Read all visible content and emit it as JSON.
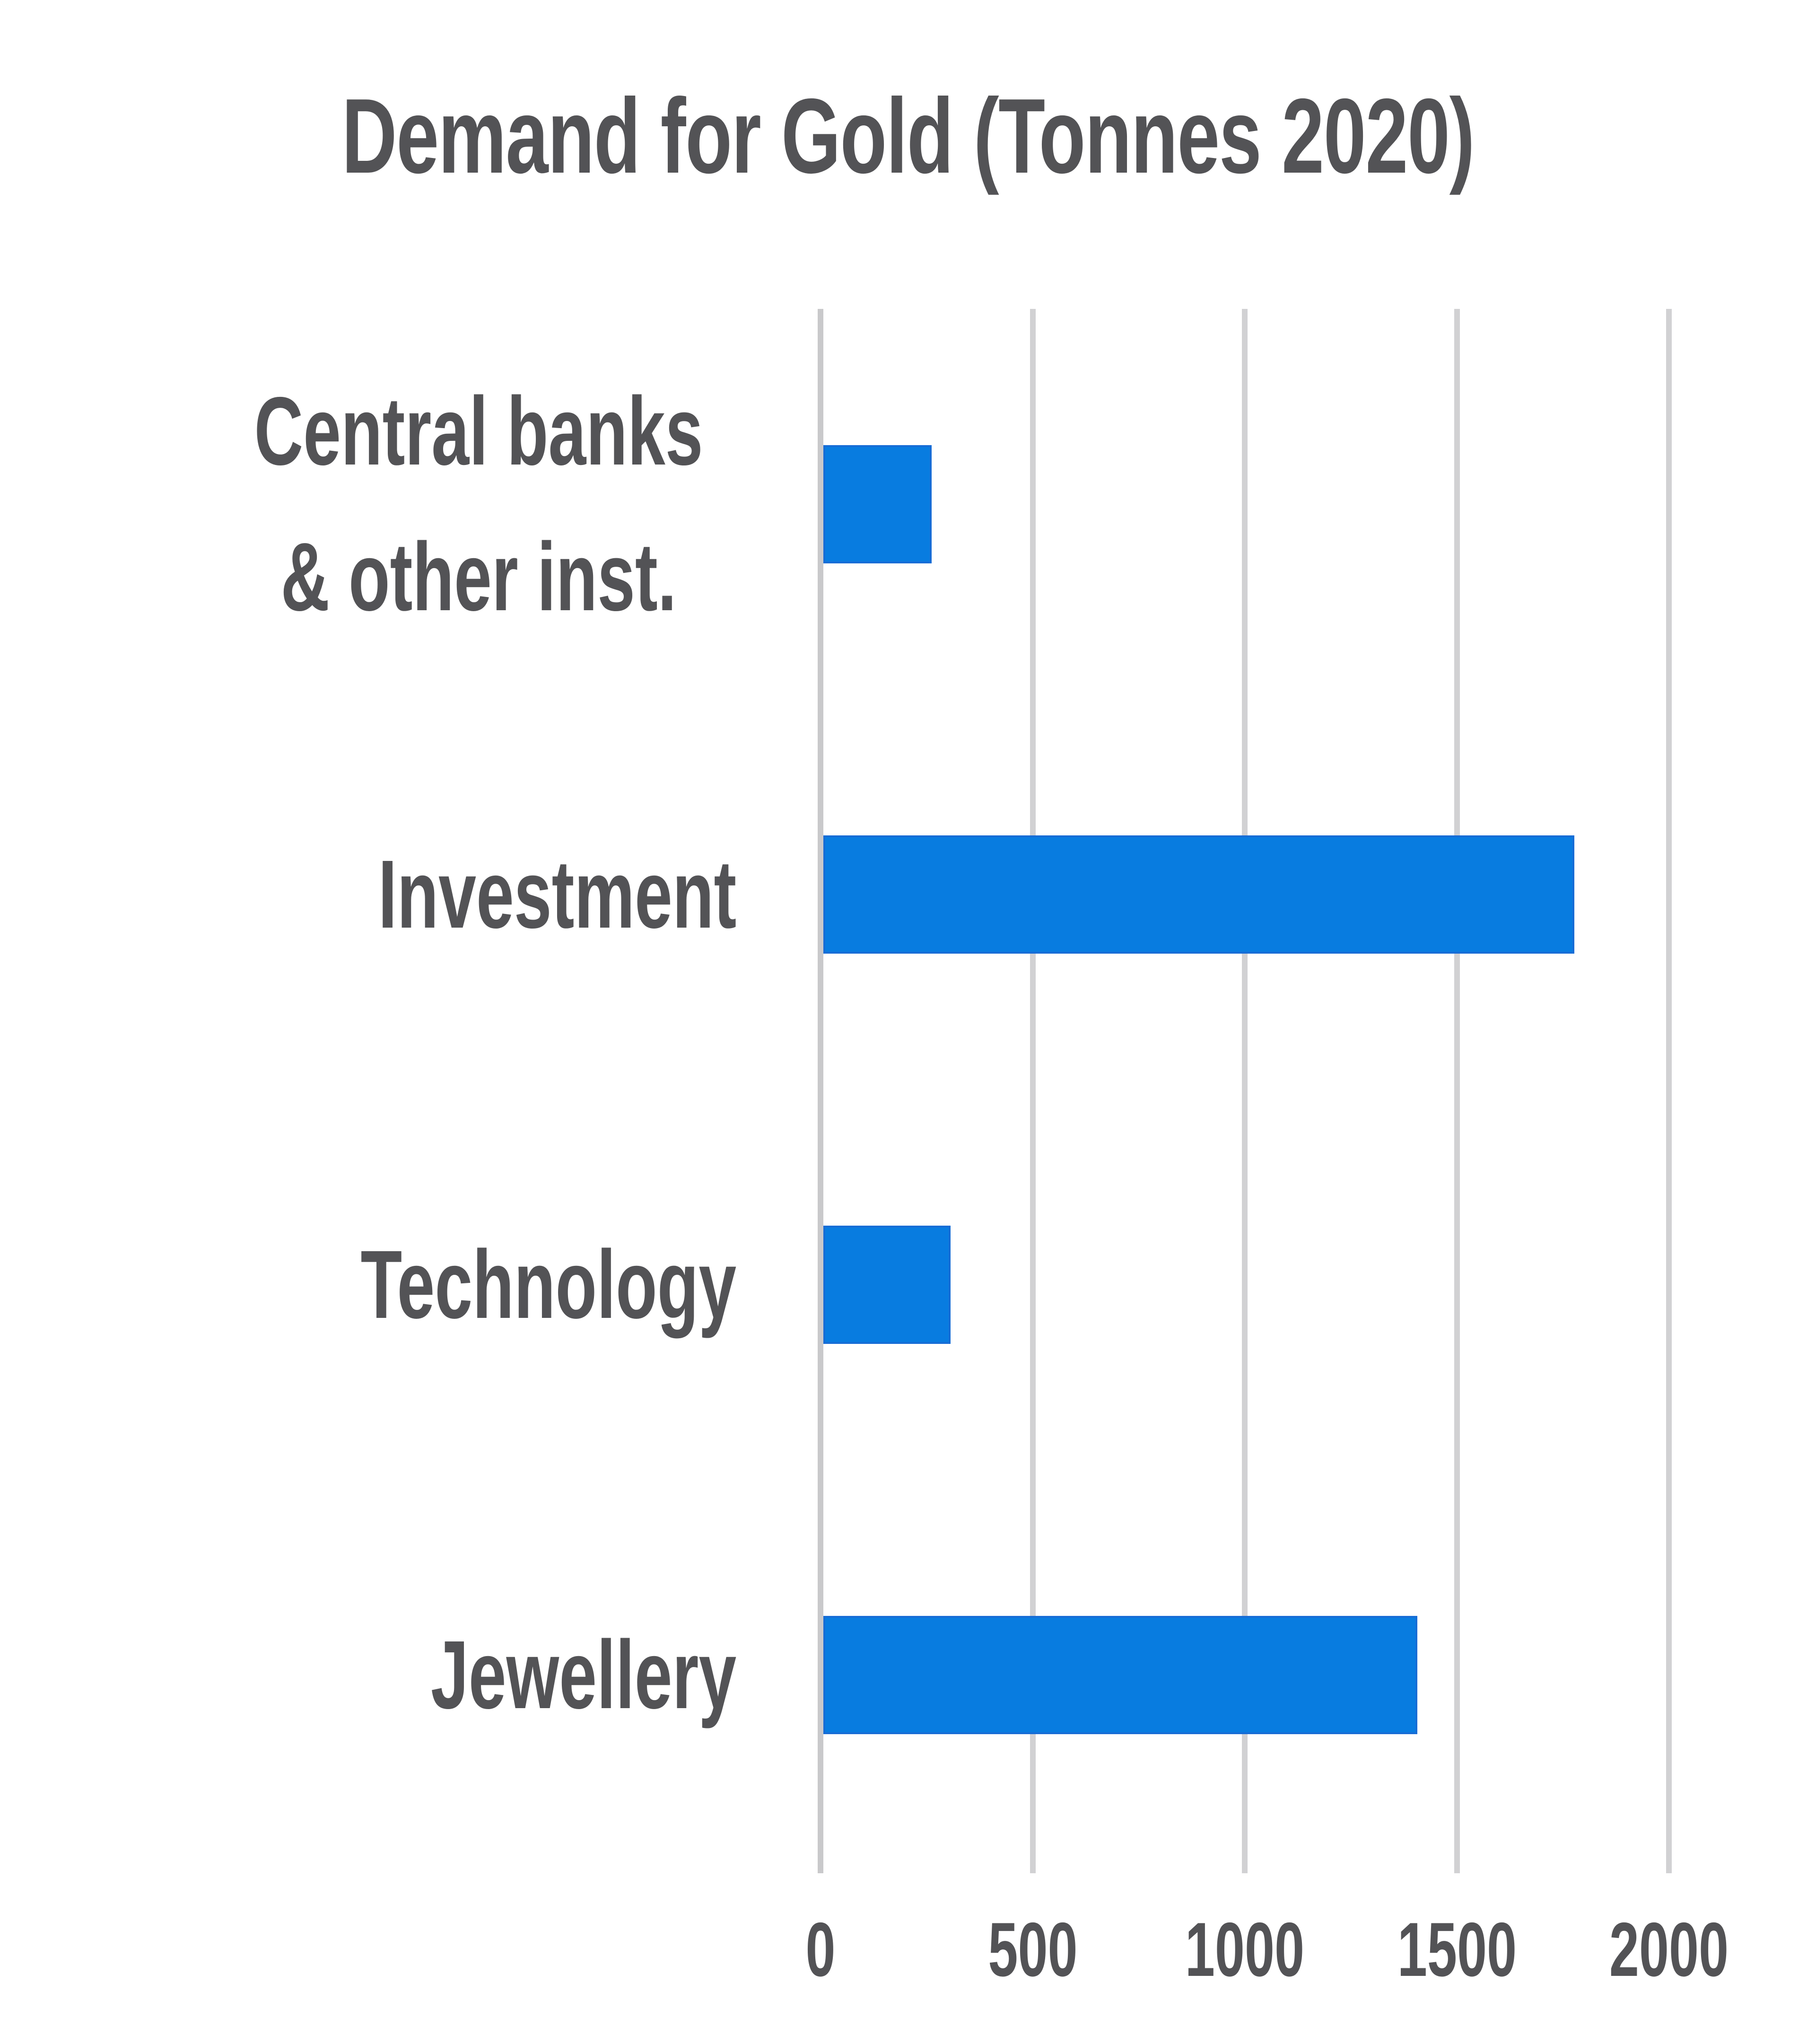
{
  "chart_data": {
    "type": "bar",
    "orientation": "horizontal",
    "title": "Demand for Gold (Tonnes 2020)",
    "categories": [
      "Central banks & other inst.",
      "Investment",
      "Technology",
      "Jewellery"
    ],
    "values": [
      255,
      1770,
      300,
      1400
    ],
    "x_ticks": [
      "0",
      "500",
      "1000",
      "1500",
      "2000"
    ],
    "x_tick_values": [
      0,
      500,
      1000,
      1500,
      2000
    ],
    "xlim": [
      0,
      2250
    ],
    "ylabel": "",
    "xlabel": "",
    "unit": "tonnes",
    "grid": "vertical-only",
    "legend": "none",
    "colors": {
      "bar_fill": "#087ce0",
      "bar_edge": "#2460cd",
      "gridline": "#d1d1d3",
      "text": "#535356",
      "background": "#ffffff"
    }
  }
}
